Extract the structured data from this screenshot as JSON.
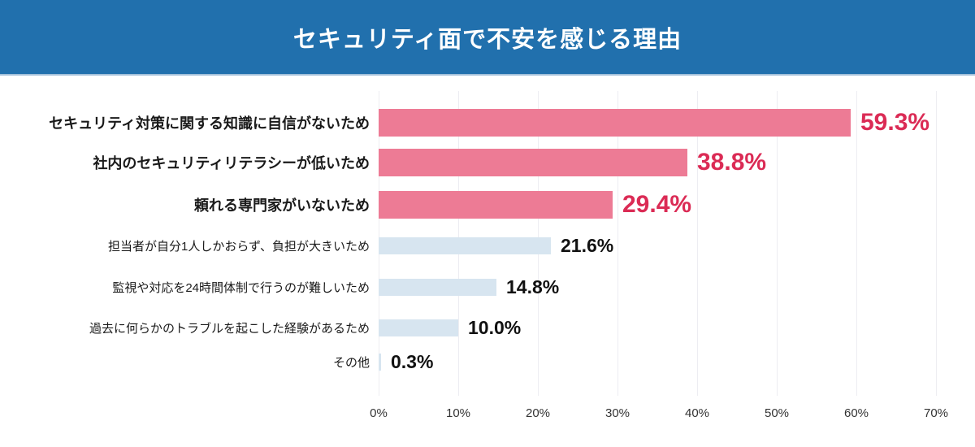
{
  "header": {
    "title": "セキュリティ面で不安を感じる理由"
  },
  "colors": {
    "header_bg": "#2170AD",
    "highlight_bar": "#ED7B95",
    "highlight_value": "#DB2B55",
    "normal_bar": "#D7E5F0",
    "normal_value": "#111111",
    "label_text": "#1A1A1A",
    "gridline": "#EDEDF2",
    "axis_text": "#333333"
  },
  "chart_data": {
    "type": "bar",
    "orientation": "horizontal",
    "title": "セキュリティ面で不安を感じる理由",
    "categories": [
      "セキュリティ対策に関する知識に自信がないため",
      "社内のセキュリティリテラシーが低いため",
      "頼れる専門家がいないため",
      "担当者が自分1人しかおらず、負担が大きいため",
      "監視や対応を24時間体制で行うのが難しいため",
      "過去に何らかのトラブルを起こした経験があるため",
      "その他"
    ],
    "values": [
      59.3,
      38.8,
      29.4,
      21.6,
      14.8,
      10.0,
      0.3
    ],
    "value_labels": [
      "59.3%",
      "38.8%",
      "29.4%",
      "21.6%",
      "14.8%",
      "10.0%",
      "0.3%"
    ],
    "highlighted": [
      true,
      true,
      true,
      false,
      false,
      false,
      false
    ],
    "xlabel": "",
    "ylabel": "",
    "xlim": [
      0,
      70
    ],
    "x_ticks": [
      "0%",
      "10%",
      "20%",
      "30%",
      "40%",
      "50%",
      "60%",
      "70%"
    ],
    "grid": "vertical",
    "legend": "none"
  }
}
